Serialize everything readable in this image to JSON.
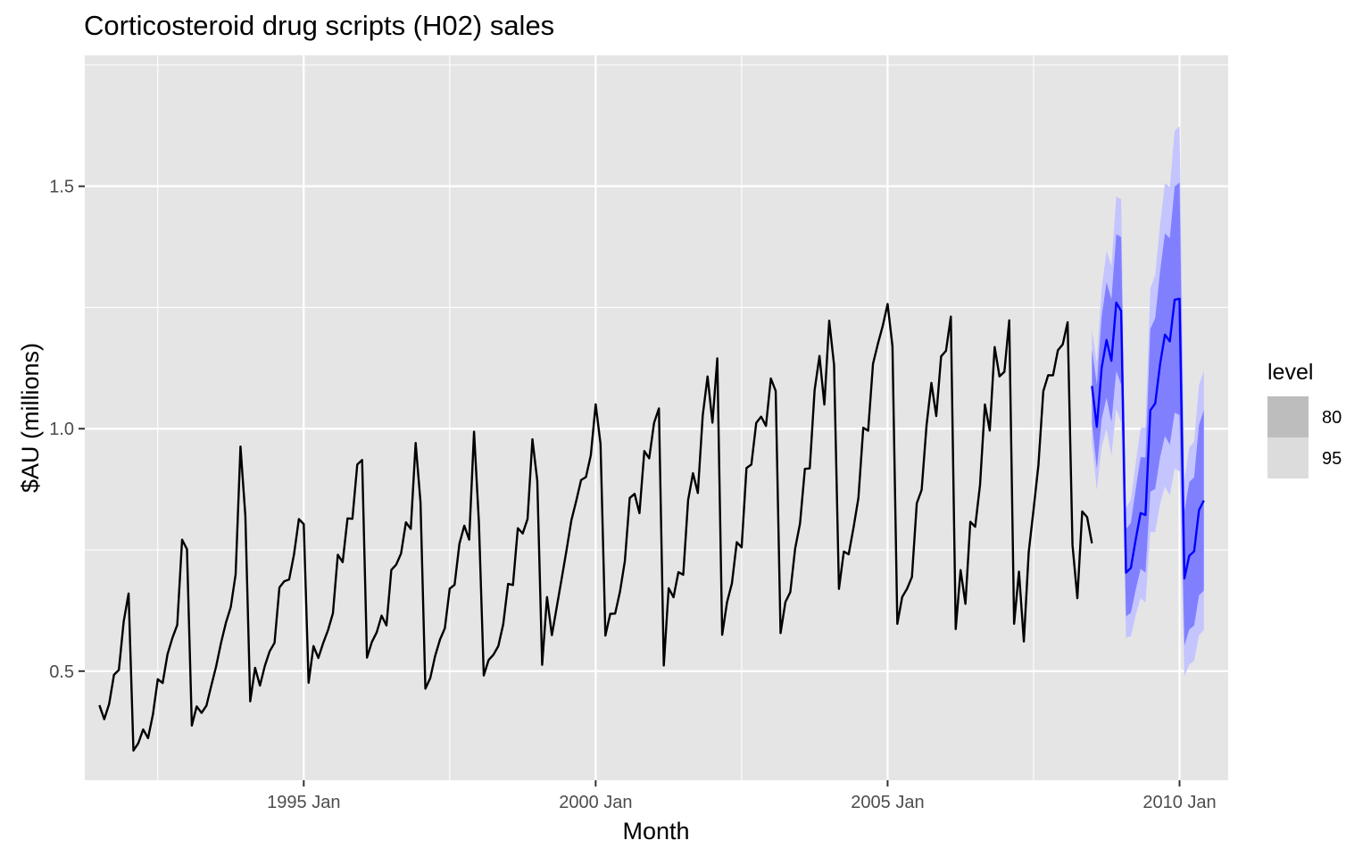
{
  "chart_data": {
    "type": "line",
    "title": "Corticosteroid drug scripts (H02) sales",
    "xlabel": "Month",
    "ylabel": "$AU (millions)",
    "xlim": [
      "1991 Apr",
      "2010 Nov"
    ],
    "ylim": [
      0.275,
      1.77
    ],
    "x_ticks": [
      {
        "date": "1995 Jan",
        "label": "1995 Jan"
      },
      {
        "date": "2000 Jan",
        "label": "2000 Jan"
      },
      {
        "date": "2005 Jan",
        "label": "2005 Jan"
      },
      {
        "date": "2010 Jan",
        "label": "2010 Jan"
      }
    ],
    "y_ticks": [
      0.5,
      1.0,
      1.5
    ],
    "y_tick_labels": [
      "0.5",
      "1.0",
      "1.5"
    ],
    "grid": true,
    "legend": {
      "title": "level",
      "position": "right",
      "entries": [
        "80",
        "95"
      ]
    },
    "colors": {
      "history": "#000000",
      "forecast": "#0000ff",
      "pi80": "#8080ff",
      "pi95": "#c4c4ff",
      "panel": "#e5e5e5",
      "grid": "#ffffff"
    },
    "history": {
      "start": "1991 Jul",
      "values": [
        0.429795,
        0.400906,
        0.432159,
        0.492543,
        0.502369,
        0.602652,
        0.660119,
        0.33622,
        0.351348,
        0.379808,
        0.361801,
        0.410534,
        0.48338,
        0.475463,
        0.534761,
        0.568319,
        0.595259,
        0.771136,
        0.751503,
        0.387727,
        0.427283,
        0.41389,
        0.428859,
        0.470126,
        0.50998,
        0.558342,
        0.59966,
        0.632156,
        0.699367,
        0.963319,
        0.819934,
        0.437693,
        0.506867,
        0.470274,
        0.510645,
        0.54094,
        0.558443,
        0.672393,
        0.68527,
        0.688919,
        0.740823,
        0.813582,
        0.803188,
        0.475976,
        0.55163,
        0.52726,
        0.558006,
        0.58477,
        0.619448,
        0.740017,
        0.724826,
        0.815101,
        0.814069,
        0.925963,
        0.935516,
        0.527876,
        0.560047,
        0.57998,
        0.614419,
        0.594166,
        0.70873,
        0.719618,
        0.742549,
        0.80698,
        0.793349,
        0.970694,
        0.848149,
        0.463786,
        0.485591,
        0.531133,
        0.564964,
        0.588434,
        0.670015,
        0.67804,
        0.762785,
        0.799989,
        0.771133,
        0.993795,
        0.806944,
        0.491018,
        0.523049,
        0.533979,
        0.551864,
        0.596845,
        0.679887,
        0.677613,
        0.794802,
        0.783948,
        0.81389,
        0.978228,
        0.892713,
        0.513067,
        0.652861,
        0.574156,
        0.63203,
        0.690001,
        0.74896,
        0.810924,
        0.850954,
        0.894065,
        0.900239,
        0.945093,
        1.050262,
        0.968617,
        0.573416,
        0.618138,
        0.618689,
        0.664227,
        0.72699,
        0.857116,
        0.86561,
        0.825874,
        0.953896,
        0.938972,
        1.012002,
        1.04175,
        0.511694,
        0.670984,
        0.652434,
        0.704038,
        0.698795,
        0.852718,
        0.908065,
        0.86741,
        1.027085,
        1.107822,
        1.012412,
        1.145124,
        0.574939,
        0.642238,
        0.680798,
        0.76588,
        0.755231,
        0.919009,
        0.92608,
        1.011982,
        1.024822,
        1.005798,
        1.103614,
        1.077935,
        0.578416,
        0.642567,
        0.662928,
        0.753062,
        0.804567,
        0.917209,
        0.918201,
        1.079616,
        1.150143,
        1.04981,
        1.222799,
        1.13134,
        0.66961,
        0.746614,
        0.741012,
        0.796183,
        0.857024,
        1.002027,
        0.99584,
        1.133838,
        1.174866,
        1.21201,
        1.257184,
        1.170136,
        0.597556,
        0.652922,
        0.66995,
        0.694218,
        0.846185,
        0.87389,
        1.006524,
        1.094397,
        1.026036,
        1.149262,
        1.160587,
        1.231092,
        0.586793,
        0.70839,
        0.638812,
        0.807958,
        0.797793,
        0.884465,
        1.050008,
        0.996209,
        1.168617,
        1.107881,
        1.117405,
        1.223512,
        0.597587,
        0.70521,
        0.561235,
        0.745203,
        0.833545,
        0.924968,
        1.077244,
        1.110305,
        1.110037,
        1.161769,
        1.173909,
        1.219646,
        0.760224,
        0.650431,
        0.829251,
        0.817719,
        0.76366
      ]
    },
    "forecast": {
      "start": "2008 Jul",
      "mean": [
        1.088,
        1.004,
        1.126,
        1.183,
        1.14,
        1.26,
        1.243,
        0.703,
        0.713,
        0.772,
        0.826,
        0.822,
        1.038,
        1.052,
        1.133,
        1.194,
        1.18,
        1.266,
        1.268,
        0.691,
        0.738,
        0.747,
        0.832,
        0.852
      ],
      "lo80": [
        1.012,
        0.917,
        1.02,
        1.064,
        1.013,
        1.119,
        1.091,
        0.613,
        0.62,
        0.668,
        0.711,
        0.703,
        0.87,
        0.876,
        0.941,
        0.985,
        0.967,
        1.033,
        1.028,
        0.553,
        0.586,
        0.594,
        0.656,
        0.666
      ],
      "hi80": [
        1.164,
        1.091,
        1.232,
        1.302,
        1.267,
        1.401,
        1.395,
        0.793,
        0.806,
        0.876,
        0.941,
        0.941,
        1.206,
        1.228,
        1.325,
        1.403,
        1.393,
        1.499,
        1.508,
        0.829,
        0.89,
        0.9,
        1.008,
        1.038
      ],
      "lo95": [
        0.971,
        0.873,
        0.963,
        0.999,
        0.944,
        1.041,
        1.013,
        0.569,
        0.572,
        0.615,
        0.651,
        0.641,
        0.787,
        0.787,
        0.845,
        0.881,
        0.862,
        0.918,
        0.912,
        0.49,
        0.514,
        0.521,
        0.574,
        0.585
      ],
      "hi95": [
        1.205,
        1.135,
        1.289,
        1.367,
        1.336,
        1.479,
        1.473,
        0.837,
        0.854,
        0.929,
        1.001,
        1.003,
        1.289,
        1.317,
        1.421,
        1.507,
        1.498,
        1.614,
        1.624,
        0.892,
        0.962,
        0.973,
        1.09,
        1.119
      ]
    }
  }
}
